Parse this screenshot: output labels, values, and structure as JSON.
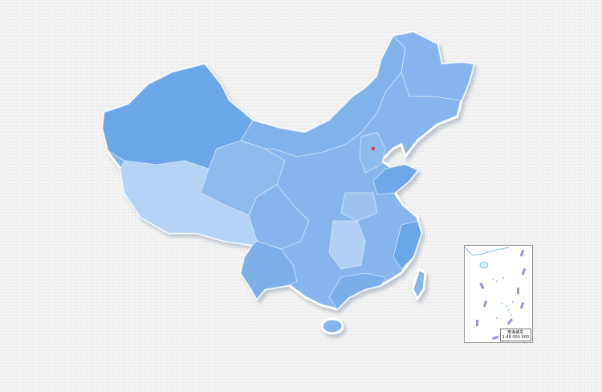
{
  "map": {
    "colors": {
      "base": "#85b5ec",
      "dark": "#6aa6e8",
      "light": "#b4d3f5",
      "mid": "#9cc3f0",
      "border": "#d6e6f8",
      "capital": "#e0303a"
    },
    "capital_marker": "red-dot"
  },
  "inset": {
    "title": "南海诸岛",
    "scale": "1:48 000 000"
  }
}
